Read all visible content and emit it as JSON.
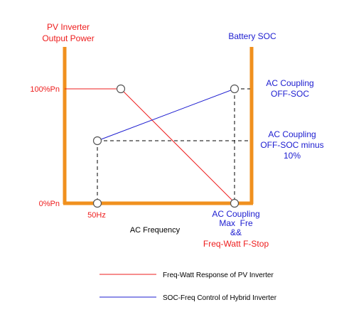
{
  "labels": {
    "left_axis_title_line1": "PV Inverter",
    "left_axis_title_line2": "Output Power",
    "right_axis_title": "Battery SOC",
    "y_100": "100%Pn",
    "y_0": "0%Pn",
    "x_50hz": "50Hz",
    "x_axis_title": "AC Frequency",
    "ac_off_soc_line1": "AC Coupling",
    "ac_off_soc_line2": "OFF-SOC",
    "ac_off_minus_line1": "AC Coupling",
    "ac_off_minus_line2": "OFF-SOC minus",
    "ac_off_minus_line3": "10%",
    "maxfre_line1": "AC Coupling",
    "maxfre_line2": "Max  Fre",
    "maxfre_line3": "&&",
    "maxfre_line4": "Freq-Watt F-Stop"
  },
  "legend": {
    "red_label": "Freq-Watt Response of PV Inverter",
    "blue_label": "SOC-Freq Control of Hybrid Inverter"
  },
  "colors": {
    "axis": "#f0901e",
    "red": "#ee1c1c",
    "blue": "#1c1cd0",
    "dash": "#000000",
    "marker_fill": "#ffffff",
    "marker_stroke": "#555555"
  }
}
